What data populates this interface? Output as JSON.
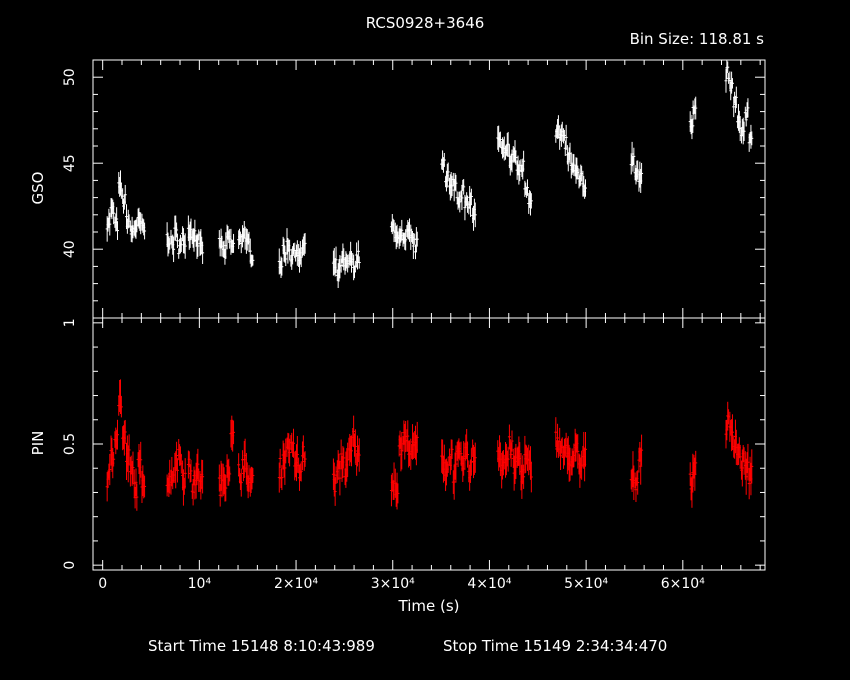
{
  "chart_data": [
    {
      "type": "scatter",
      "title": "RCS0928+3646",
      "subtitle": "Bin Size: 118.81 s",
      "ylabel": "GSO",
      "ylim": [
        36,
        51
      ],
      "xlim": [
        -1000,
        68500
      ],
      "yticks": [
        "40",
        "45",
        "50"
      ],
      "color": "#ffffff",
      "points": [
        [
          600,
          41.6
        ],
        [
          1000,
          42.2
        ],
        [
          1400,
          41.4
        ],
        [
          1800,
          43.5
        ],
        [
          2200,
          42.8
        ],
        [
          2600,
          41.7
        ],
        [
          3000,
          41.0
        ],
        [
          3400,
          41.3
        ],
        [
          3800,
          41.5
        ],
        [
          4200,
          41.2
        ],
        [
          6800,
          40.6
        ],
        [
          7200,
          40.3
        ],
        [
          7600,
          40.9
        ],
        [
          8000,
          40.1
        ],
        [
          8400,
          40.6
        ],
        [
          9000,
          41.1
        ],
        [
          9400,
          40.9
        ],
        [
          9800,
          40.5
        ],
        [
          10200,
          40.0
        ],
        [
          12200,
          40.3
        ],
        [
          12600,
          39.8
        ],
        [
          13000,
          40.6
        ],
        [
          13400,
          40.2
        ],
        [
          14200,
          40.5
        ],
        [
          14600,
          41.0
        ],
        [
          15000,
          40.2
        ],
        [
          15400,
          39.7
        ],
        [
          18400,
          39.2
        ],
        [
          18800,
          39.8
        ],
        [
          19200,
          40.2
        ],
        [
          19600,
          39.6
        ],
        [
          20000,
          40.0
        ],
        [
          20400,
          39.4
        ],
        [
          20800,
          40.2
        ],
        [
          24000,
          39.0
        ],
        [
          24400,
          38.6
        ],
        [
          24800,
          39.3
        ],
        [
          25200,
          39.0
        ],
        [
          25600,
          39.4
        ],
        [
          26000,
          39.1
        ],
        [
          26400,
          39.5
        ],
        [
          30000,
          41.2
        ],
        [
          30400,
          40.6
        ],
        [
          30800,
          41.0
        ],
        [
          31200,
          40.3
        ],
        [
          31600,
          40.8
        ],
        [
          32000,
          40.5
        ],
        [
          32400,
          40.2
        ],
        [
          35200,
          45.2
        ],
        [
          35600,
          44.3
        ],
        [
          36000,
          43.5
        ],
        [
          36400,
          43.8
        ],
        [
          36800,
          43.0
        ],
        [
          37200,
          43.4
        ],
        [
          37600,
          42.5
        ],
        [
          38000,
          42.8
        ],
        [
          38400,
          42.0
        ],
        [
          41000,
          46.2
        ],
        [
          41400,
          45.6
        ],
        [
          41800,
          46.0
        ],
        [
          42200,
          45.1
        ],
        [
          42600,
          45.5
        ],
        [
          43000,
          44.5
        ],
        [
          43400,
          44.8
        ],
        [
          43800,
          43.6
        ],
        [
          44200,
          43.0
        ],
        [
          47000,
          46.9
        ],
        [
          47400,
          46.5
        ],
        [
          47800,
          46.2
        ],
        [
          48200,
          45.3
        ],
        [
          48600,
          44.8
        ],
        [
          49000,
          44.4
        ],
        [
          49400,
          44.0
        ],
        [
          49800,
          43.6
        ],
        [
          54800,
          45.3
        ],
        [
          55200,
          44.6
        ],
        [
          55600,
          44.0
        ],
        [
          60900,
          47.5
        ],
        [
          61200,
          48.1
        ],
        [
          64600,
          50.2
        ],
        [
          65000,
          49.4
        ],
        [
          65400,
          48.6
        ],
        [
          65800,
          47.3
        ],
        [
          66200,
          46.9
        ],
        [
          66600,
          47.8
        ],
        [
          67000,
          46.5
        ]
      ]
    },
    {
      "type": "scatter",
      "ylabel": "PIN",
      "xlabel": "Time (s)",
      "ylim": [
        -0.02,
        1.02
      ],
      "xlim": [
        -1000,
        68500
      ],
      "yticks": [
        "0",
        "0.5",
        "1"
      ],
      "xticks": [
        "0",
        "10⁴",
        "2×10⁴",
        "3×10⁴",
        "4×10⁴",
        "5×10⁴",
        "6×10⁴"
      ],
      "color": "#ff0000",
      "points": [
        [
          600,
          0.36
        ],
        [
          1000,
          0.44
        ],
        [
          1400,
          0.55
        ],
        [
          1800,
          0.68
        ],
        [
          2200,
          0.52
        ],
        [
          2600,
          0.44
        ],
        [
          3000,
          0.38
        ],
        [
          3400,
          0.32
        ],
        [
          3800,
          0.4
        ],
        [
          4200,
          0.36
        ],
        [
          6800,
          0.34
        ],
        [
          7200,
          0.38
        ],
        [
          7600,
          0.42
        ],
        [
          8000,
          0.46
        ],
        [
          8400,
          0.36
        ],
        [
          9000,
          0.4
        ],
        [
          9400,
          0.33
        ],
        [
          9800,
          0.38
        ],
        [
          10200,
          0.35
        ],
        [
          12200,
          0.33
        ],
        [
          12600,
          0.36
        ],
        [
          13000,
          0.41
        ],
        [
          13400,
          0.52
        ],
        [
          14200,
          0.38
        ],
        [
          14600,
          0.42
        ],
        [
          15000,
          0.36
        ],
        [
          15400,
          0.34
        ],
        [
          18400,
          0.4
        ],
        [
          18800,
          0.44
        ],
        [
          19200,
          0.5
        ],
        [
          19600,
          0.47
        ],
        [
          20000,
          0.43
        ],
        [
          20400,
          0.38
        ],
        [
          20800,
          0.46
        ],
        [
          24000,
          0.34
        ],
        [
          24400,
          0.39
        ],
        [
          24800,
          0.43
        ],
        [
          25200,
          0.4
        ],
        [
          25600,
          0.46
        ],
        [
          26000,
          0.52
        ],
        [
          26400,
          0.44
        ],
        [
          30000,
          0.35
        ],
        [
          30400,
          0.33
        ],
        [
          30800,
          0.48
        ],
        [
          31200,
          0.52
        ],
        [
          31600,
          0.5
        ],
        [
          32000,
          0.47
        ],
        [
          32400,
          0.49
        ],
        [
          35200,
          0.43
        ],
        [
          35600,
          0.4
        ],
        [
          36000,
          0.45
        ],
        [
          36400,
          0.38
        ],
        [
          36800,
          0.44
        ],
        [
          37200,
          0.42
        ],
        [
          37600,
          0.46
        ],
        [
          38000,
          0.4
        ],
        [
          38400,
          0.45
        ],
        [
          41000,
          0.47
        ],
        [
          41400,
          0.42
        ],
        [
          41800,
          0.44
        ],
        [
          42200,
          0.49
        ],
        [
          42600,
          0.4
        ],
        [
          43000,
          0.45
        ],
        [
          43400,
          0.38
        ],
        [
          43800,
          0.43
        ],
        [
          44200,
          0.4
        ],
        [
          47000,
          0.52
        ],
        [
          47400,
          0.48
        ],
        [
          47800,
          0.46
        ],
        [
          48200,
          0.45
        ],
        [
          48600,
          0.42
        ],
        [
          49000,
          0.47
        ],
        [
          49400,
          0.4
        ],
        [
          49800,
          0.44
        ],
        [
          54800,
          0.38
        ],
        [
          55200,
          0.35
        ],
        [
          55600,
          0.45
        ],
        [
          60900,
          0.34
        ],
        [
          61200,
          0.4
        ],
        [
          64600,
          0.58
        ],
        [
          65000,
          0.55
        ],
        [
          65400,
          0.52
        ],
        [
          65800,
          0.46
        ],
        [
          66200,
          0.42
        ],
        [
          66600,
          0.4
        ],
        [
          67000,
          0.37
        ]
      ]
    }
  ],
  "footer": {
    "start": "Start Time 15148  8:10:43:989",
    "stop": "Stop Time 15149  2:34:34:470"
  }
}
